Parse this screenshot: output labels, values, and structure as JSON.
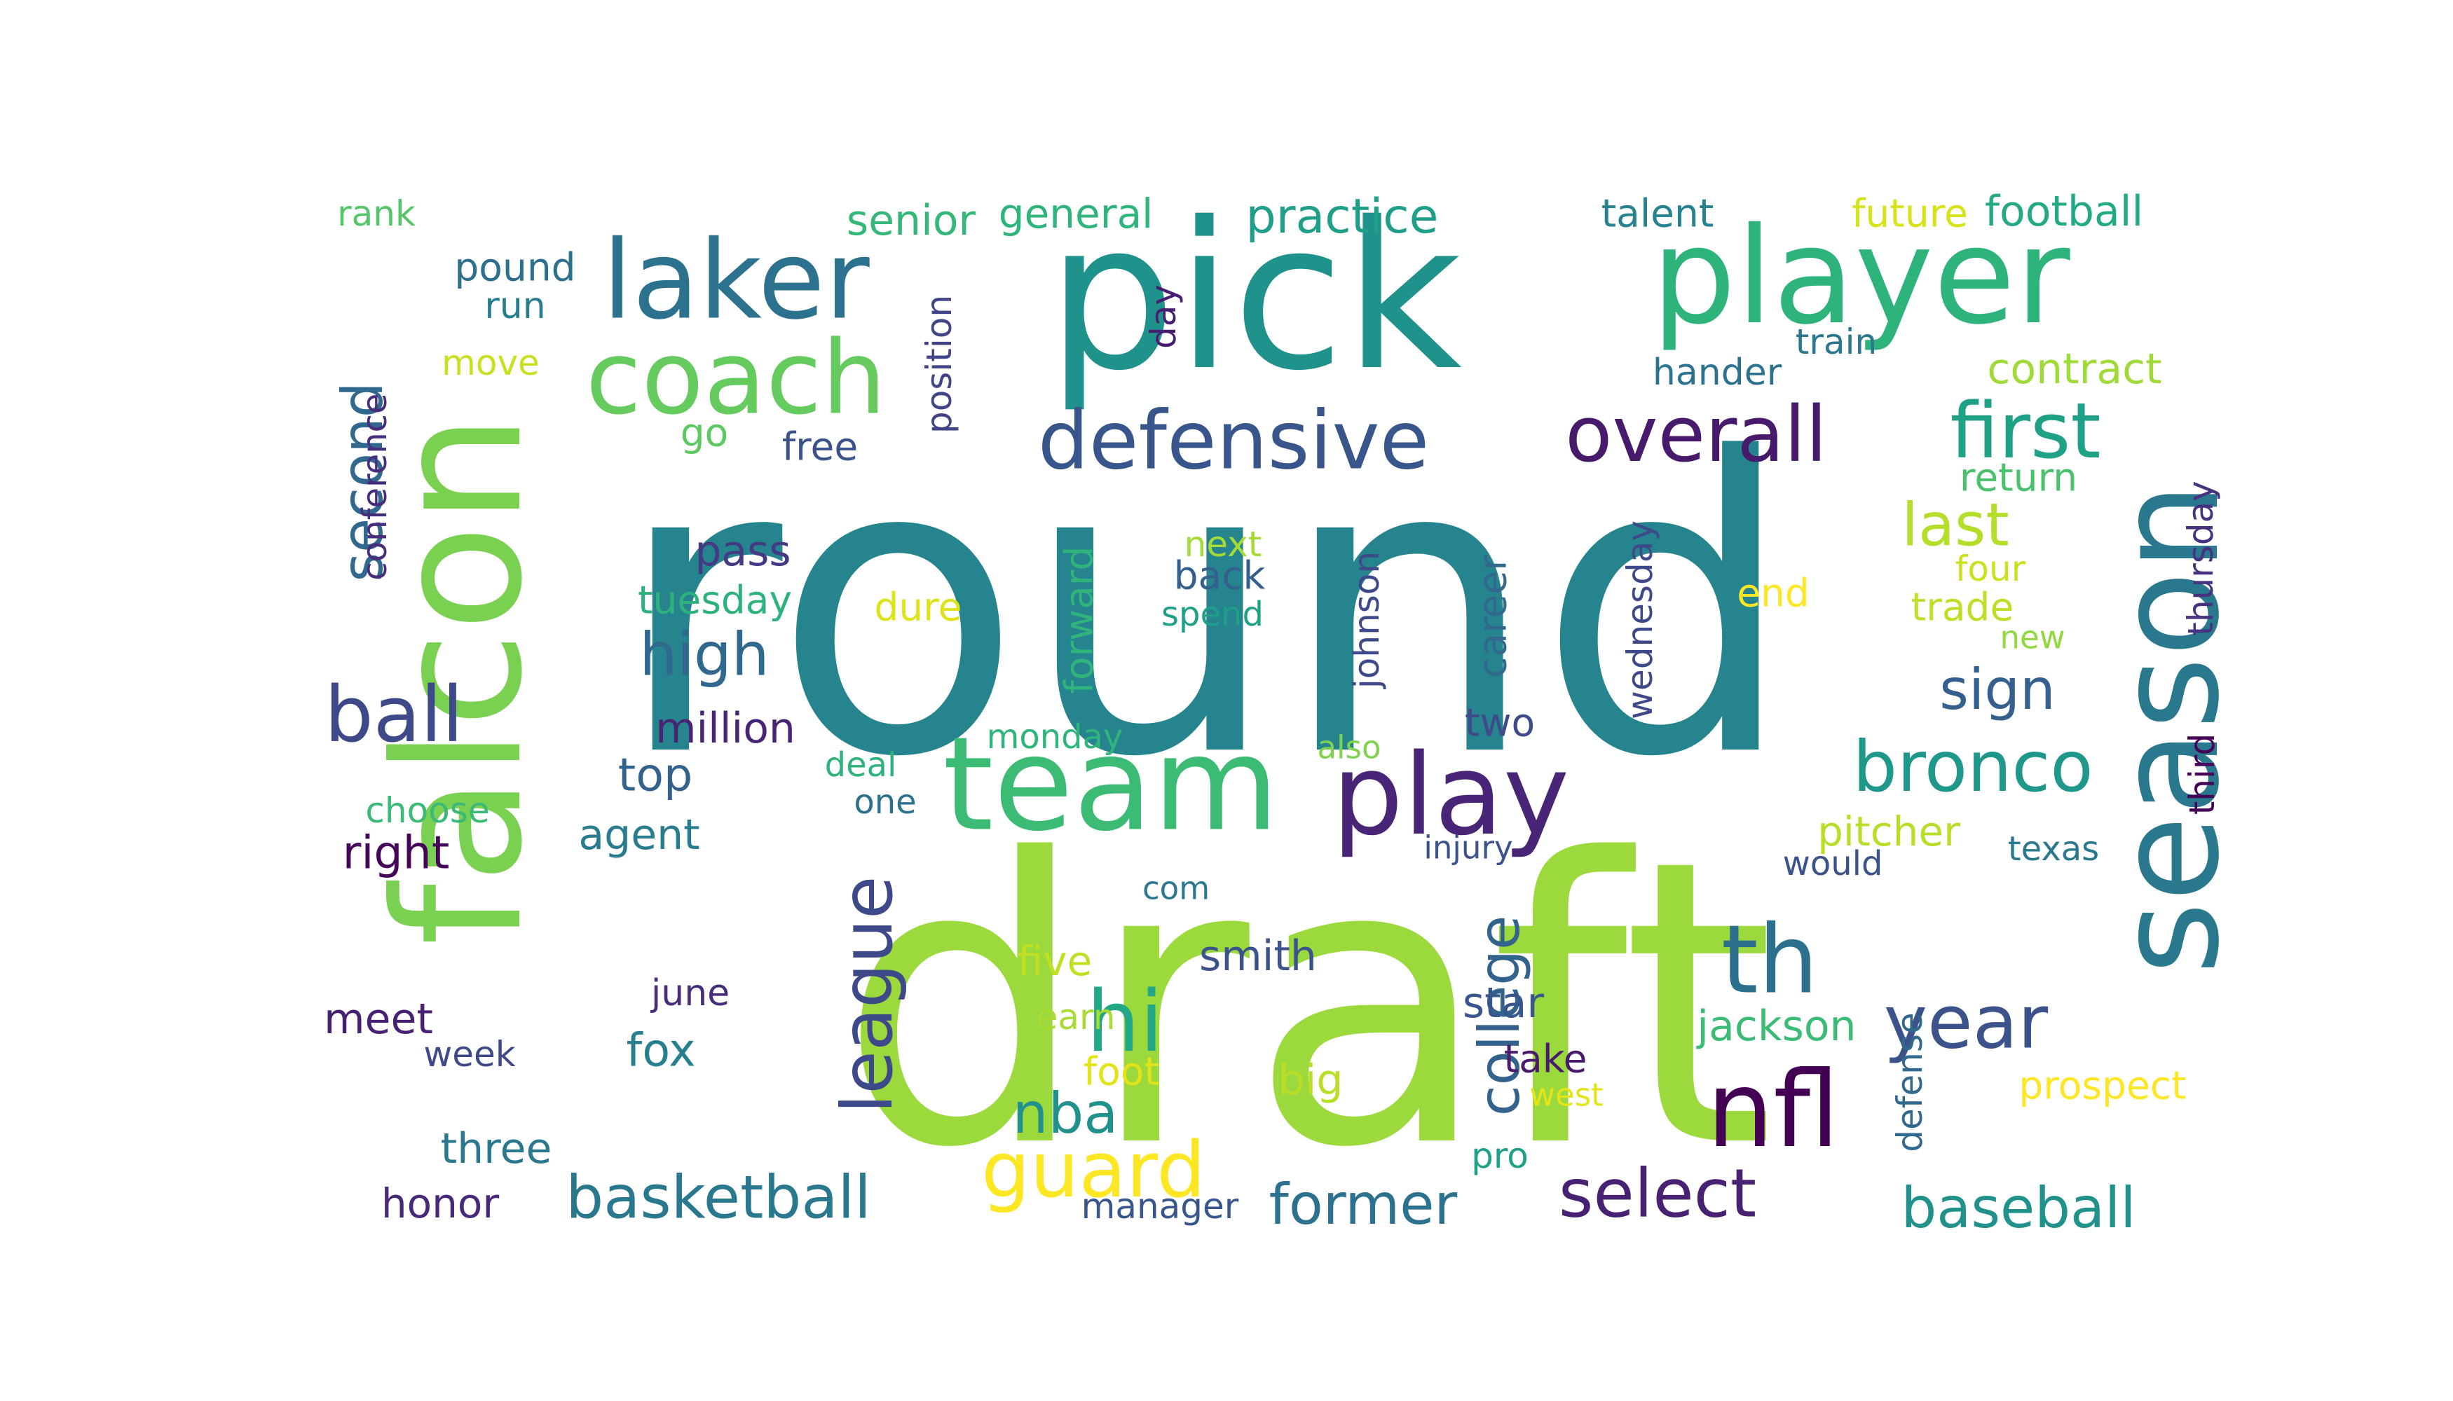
{
  "words": [
    {
      "text": "round",
      "color": "#25848e"
    },
    {
      "text": "draft",
      "color": "#9bd93c"
    },
    {
      "text": "pick",
      "color": "#20928c"
    },
    {
      "text": "falcon",
      "color": "#7ad151"
    },
    {
      "text": "player",
      "color": "#2eb37c"
    },
    {
      "text": "season",
      "color": "#2a788e"
    },
    {
      "text": "team",
      "color": "#3cbb75"
    },
    {
      "text": "laker",
      "color": "#2c728e"
    },
    {
      "text": "coach",
      "color": "#65cb5e"
    },
    {
      "text": "play",
      "color": "#482576"
    },
    {
      "text": "th",
      "color": "#2d708e"
    },
    {
      "text": "nfl",
      "color": "#440154"
    },
    {
      "text": "defensive",
      "color": "#39568c"
    },
    {
      "text": "overall",
      "color": "#481a6c"
    },
    {
      "text": "first",
      "color": "#1fa188"
    },
    {
      "text": "bronco",
      "color": "#1f988b"
    },
    {
      "text": "guard",
      "color": "#fde725"
    },
    {
      "text": "year",
      "color": "#3b528b"
    },
    {
      "text": "hi",
      "color": "#22a884"
    },
    {
      "text": "league",
      "color": "#3e4989"
    },
    {
      "text": "basketball",
      "color": "#2a788e"
    },
    {
      "text": "select",
      "color": "#482173"
    },
    {
      "text": "baseball",
      "color": "#21918c"
    },
    {
      "text": "high",
      "color": "#31688e"
    },
    {
      "text": "ball",
      "color": "#3e4989"
    },
    {
      "text": "second",
      "color": "#31688e"
    },
    {
      "text": "sign",
      "color": "#355f8d"
    },
    {
      "text": "last",
      "color": "#b5de2b"
    },
    {
      "text": "college",
      "color": "#33638d"
    },
    {
      "text": "nba",
      "color": "#21918c"
    },
    {
      "text": "former",
      "color": "#2c728e"
    },
    {
      "text": "practice",
      "color": "#1f9e89"
    },
    {
      "text": "football",
      "color": "#23a983"
    },
    {
      "text": "senior",
      "color": "#35b779"
    },
    {
      "text": "general",
      "color": "#2fb47c"
    },
    {
      "text": "talent",
      "color": "#26828e"
    },
    {
      "text": "future",
      "color": "#d8e219"
    },
    {
      "text": "rank",
      "color": "#54c568"
    },
    {
      "text": "pound",
      "color": "#2d708e"
    },
    {
      "text": "run",
      "color": "#277f8e"
    },
    {
      "text": "move",
      "color": "#c8e020"
    },
    {
      "text": "go",
      "color": "#5ec962"
    },
    {
      "text": "free",
      "color": "#3b528b"
    },
    {
      "text": "position",
      "color": "#414487"
    },
    {
      "text": "day",
      "color": "#481f70"
    },
    {
      "text": "hander",
      "color": "#2c728e"
    },
    {
      "text": "train",
      "color": "#2a788e"
    },
    {
      "text": "contract",
      "color": "#a0da39"
    },
    {
      "text": "return",
      "color": "#4ac16d"
    },
    {
      "text": "thursday",
      "color": "#46327e"
    },
    {
      "text": "conference",
      "color": "#472d7b"
    },
    {
      "text": "pass",
      "color": "#443983"
    },
    {
      "text": "tuesday",
      "color": "#2db27d"
    },
    {
      "text": "dure",
      "color": "#dde318"
    },
    {
      "text": "forward",
      "color": "#2fb47c"
    },
    {
      "text": "johnson",
      "color": "#3e4989"
    },
    {
      "text": "next",
      "color": "#a5db36"
    },
    {
      "text": "back",
      "color": "#355f8d"
    },
    {
      "text": "spend",
      "color": "#1fa088"
    },
    {
      "text": "career",
      "color": "#31688e"
    },
    {
      "text": "wednesday",
      "color": "#3e4989"
    },
    {
      "text": "end",
      "color": "#fde725"
    },
    {
      "text": "four",
      "color": "#cae11f"
    },
    {
      "text": "trade",
      "color": "#bddf26"
    },
    {
      "text": "new",
      "color": "#93d741"
    },
    {
      "text": "million",
      "color": "#482475"
    },
    {
      "text": "monday",
      "color": "#2fb47c"
    },
    {
      "text": "also",
      "color": "#7fd34e"
    },
    {
      "text": "two",
      "color": "#3e4a89"
    },
    {
      "text": "top",
      "color": "#33638d"
    },
    {
      "text": "deal",
      "color": "#2db27d"
    },
    {
      "text": "one",
      "color": "#2c728e"
    },
    {
      "text": "choose",
      "color": "#3aba76"
    },
    {
      "text": "agent",
      "color": "#287c8e"
    },
    {
      "text": "right",
      "color": "#450559"
    },
    {
      "text": "third",
      "color": "#450457"
    },
    {
      "text": "injury",
      "color": "#3b528b"
    },
    {
      "text": "pitcher",
      "color": "#b8de29"
    },
    {
      "text": "would",
      "color": "#3b528b"
    },
    {
      "text": "texas",
      "color": "#2a788e"
    },
    {
      "text": "com",
      "color": "#2a788e"
    },
    {
      "text": "five",
      "color": "#c2df23"
    },
    {
      "text": "smith",
      "color": "#3b528b"
    },
    {
      "text": "star",
      "color": "#39568c"
    },
    {
      "text": "june",
      "color": "#472c7a"
    },
    {
      "text": "earn",
      "color": "#a8db34"
    },
    {
      "text": "take",
      "color": "#481b6d"
    },
    {
      "text": "jackson",
      "color": "#3bbb75"
    },
    {
      "text": "defense",
      "color": "#31688e"
    },
    {
      "text": "meet",
      "color": "#482071"
    },
    {
      "text": "week",
      "color": "#3e4989"
    },
    {
      "text": "fox",
      "color": "#277e8e"
    },
    {
      "text": "foot",
      "color": "#e2e418"
    },
    {
      "text": "big",
      "color": "#bade28"
    },
    {
      "text": "west",
      "color": "#e5e419"
    },
    {
      "text": "prospect",
      "color": "#fde725"
    },
    {
      "text": "three",
      "color": "#2a788e"
    },
    {
      "text": "pro",
      "color": "#1fa188"
    },
    {
      "text": "honor",
      "color": "#482878"
    },
    {
      "text": "manager",
      "color": "#39568c"
    }
  ]
}
